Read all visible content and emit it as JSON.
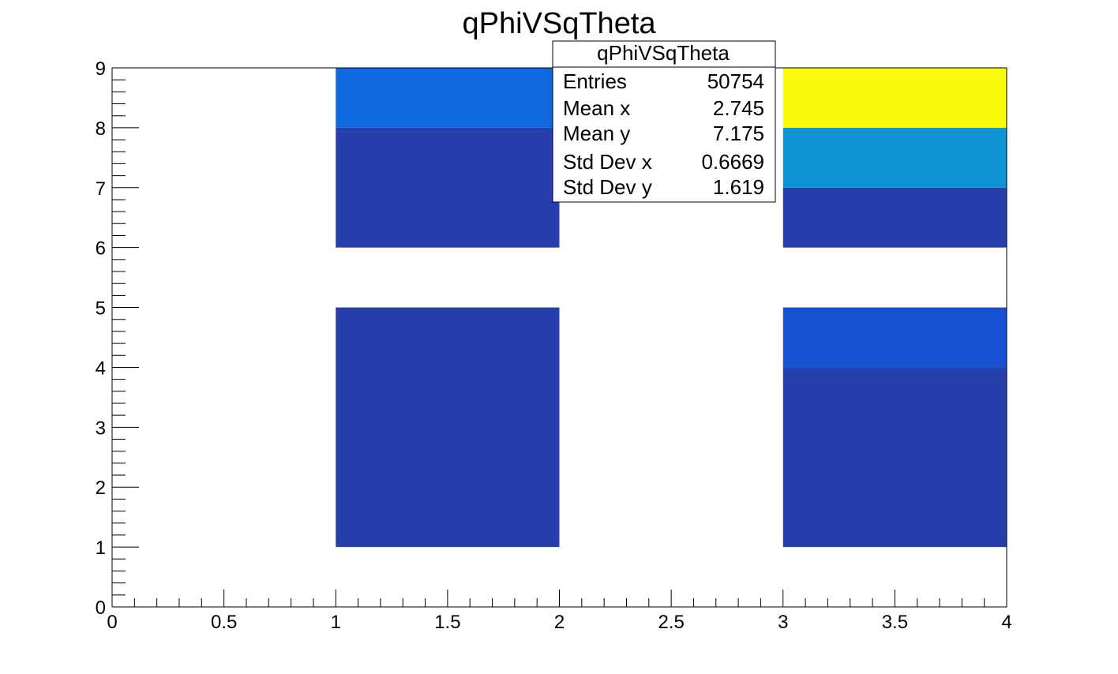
{
  "chart_data": {
    "type": "heatmap",
    "title": "qPhiVSqTheta",
    "xlim": [
      0,
      4
    ],
    "ylim": [
      0,
      9
    ],
    "x_ticks": [
      "0",
      "0.5",
      "1",
      "1.5",
      "2",
      "2.5",
      "3",
      "3.5",
      "4"
    ],
    "y_ticks": [
      "0",
      "1",
      "2",
      "3",
      "4",
      "5",
      "6",
      "7",
      "8",
      "9"
    ],
    "grid": false,
    "colors": {
      "dark_blue": "#273ead",
      "medium_blue": "#1552d1",
      "bright_blue": "#1068df",
      "cyan_blue": "#0f92d4",
      "yellow": "#f8fa0d"
    },
    "cells": [
      {
        "x0": 1,
        "x1": 2,
        "y0": 1,
        "y1": 5,
        "color": "#273ead"
      },
      {
        "x0": 1,
        "x1": 2,
        "y0": 6,
        "y1": 8,
        "color": "#273ead"
      },
      {
        "x0": 1,
        "x1": 2,
        "y0": 8,
        "y1": 9,
        "color": "#1068df"
      },
      {
        "x0": 3,
        "x1": 4,
        "y0": 1,
        "y1": 4,
        "color": "#273ead"
      },
      {
        "x0": 3,
        "x1": 4,
        "y0": 4,
        "y1": 5,
        "color": "#1552d1"
      },
      {
        "x0": 3,
        "x1": 4,
        "y0": 6,
        "y1": 7,
        "color": "#273ead"
      },
      {
        "x0": 3,
        "x1": 4,
        "y0": 7,
        "y1": 8,
        "color": "#0f92d4"
      },
      {
        "x0": 3,
        "x1": 4,
        "y0": 8,
        "y1": 9,
        "color": "#f8fa0d"
      }
    ],
    "stats_box": {
      "title": "qPhiVSqTheta",
      "placement": "top-right",
      "rows": [
        {
          "label": "Entries",
          "value": "50754"
        },
        {
          "label": "Mean x",
          "value": "2.745"
        },
        {
          "label": "Mean y",
          "value": "7.175"
        },
        {
          "label": "Std Dev x",
          "value": "0.6669"
        },
        {
          "label": "Std Dev y",
          "value": "1.619"
        }
      ]
    }
  }
}
